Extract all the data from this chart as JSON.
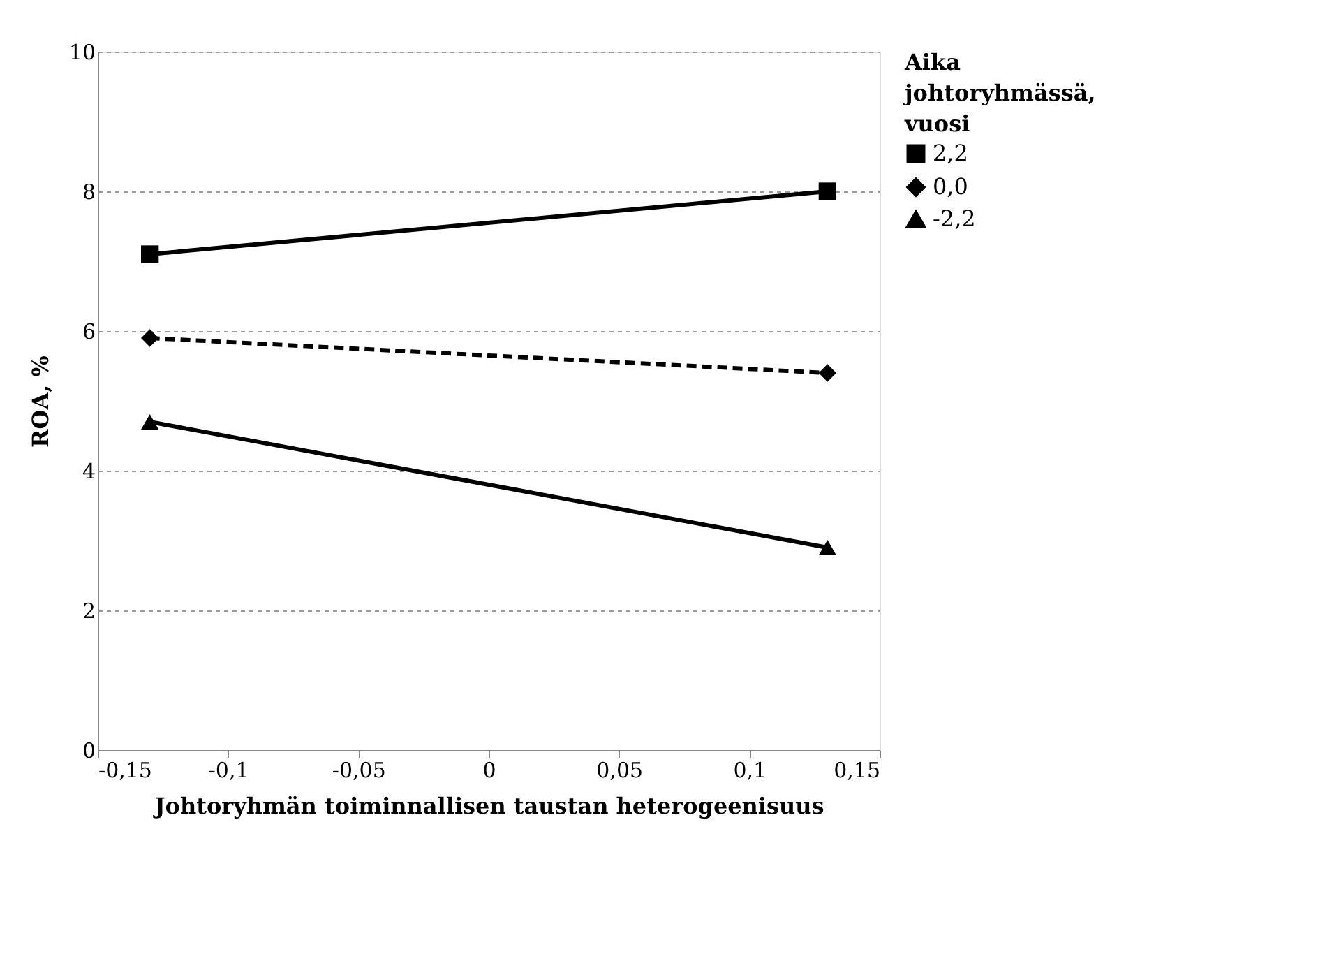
{
  "chart_data": {
    "type": "line",
    "xlabel": "Johtoryhmän toiminnallisen taustan heterogeenisuus",
    "ylabel": "ROA, %",
    "legend_title": "Aika johtoryhmässä, vuosi",
    "legend": "right",
    "grid": "y",
    "x": [
      -0.13,
      0.13
    ],
    "series": [
      {
        "name": "2,2",
        "color": "#000000",
        "values": [
          7.1,
          8.0
        ],
        "marker": "square",
        "line_style": "solid"
      },
      {
        "name": "0,0",
        "color": "#000000",
        "values": [
          5.9,
          5.4
        ],
        "marker": "diamond",
        "line_style": "dashed"
      },
      {
        "name": "-2,2",
        "color": "#000000",
        "values": [
          4.7,
          2.9
        ],
        "marker": "triangle",
        "line_style": "solid"
      }
    ],
    "xlim": [
      -0.15,
      0.15
    ],
    "xticks": [
      {
        "value": -0.15,
        "label": "-0,15"
      },
      {
        "value": -0.1,
        "label": "-0,1"
      },
      {
        "value": -0.05,
        "label": "-0,05"
      },
      0,
      {
        "value": 0.05,
        "label": "0,05"
      },
      {
        "value": 0.1,
        "label": "0,1"
      },
      {
        "value": 0.15,
        "label": "0,15"
      }
    ],
    "ylim": [
      0,
      10
    ],
    "yticks": [
      0,
      2,
      4,
      6,
      8,
      10
    ]
  }
}
